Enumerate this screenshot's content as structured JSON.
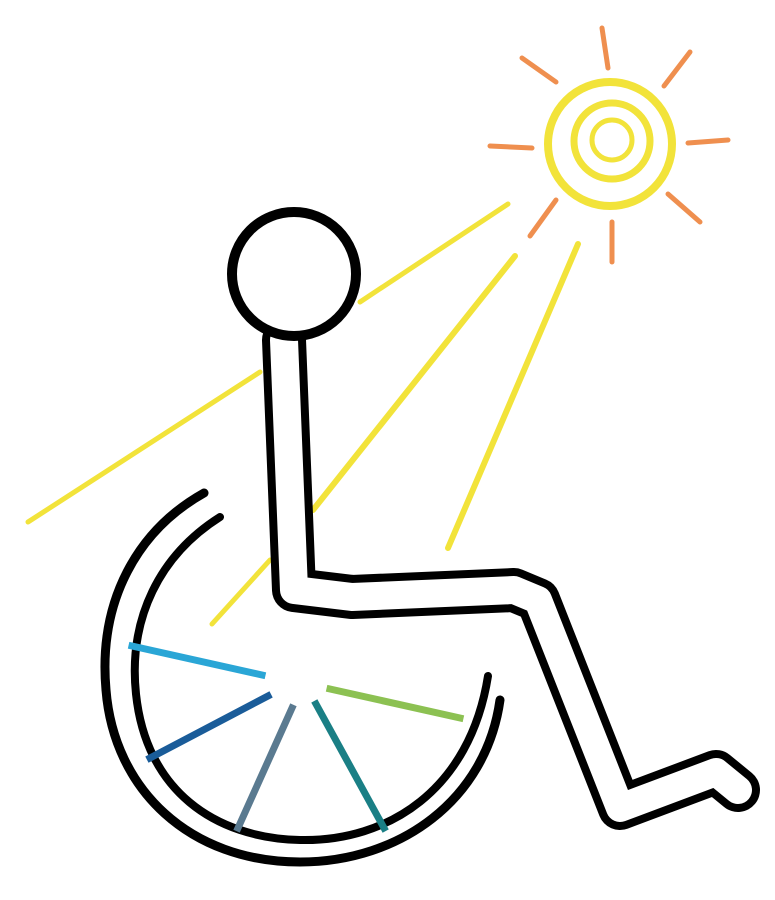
{
  "colors": {
    "background": "#ffffff",
    "outline": "#000000",
    "figure_fill": "#ffffff",
    "sun": "#f2e33a",
    "sun_ray_short": "#ef8f4f",
    "light_beam": "#f2e33a",
    "spoke_light_blue": "#2aa6d6",
    "spoke_dark_blue": "#1a5c99",
    "spoke_slate": "#5a7a90",
    "spoke_teal": "#1a7f85",
    "spoke_green": "#8cc152"
  },
  "icons": {
    "figure": "wheelchair-user-icon",
    "sun": "sun-icon"
  }
}
